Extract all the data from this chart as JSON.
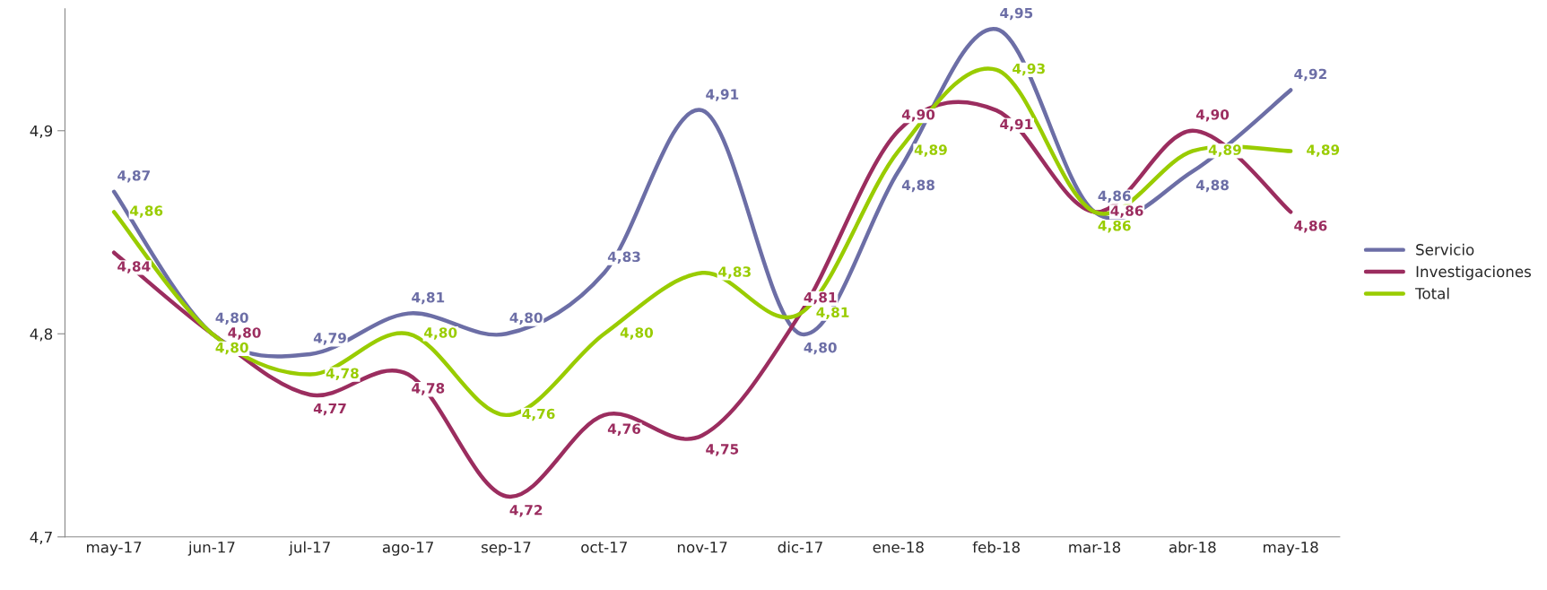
{
  "chart_data": {
    "type": "line",
    "categories": [
      "may-17",
      "jun-17",
      "jul-17",
      "ago-17",
      "sep-17",
      "oct-17",
      "nov-17",
      "dic-17",
      "ene-18",
      "feb-18",
      "mar-18",
      "abr-18",
      "may-18"
    ],
    "series": [
      {
        "name": "Servicio",
        "color": "#6c6ea6",
        "values": [
          4.87,
          4.8,
          4.79,
          4.81,
          4.8,
          4.83,
          4.91,
          4.8,
          4.88,
          4.95,
          4.86,
          4.88,
          4.92
        ],
        "value_labels": [
          "4,87",
          "4,80",
          "4,79",
          "4,81",
          "4,80",
          "4,83",
          "4,91",
          "4,80",
          "4,88",
          "4,95",
          "4,86",
          "4,88",
          "4,92"
        ]
      },
      {
        "name": "Investigaciones",
        "color": "#9b2d5f",
        "values": [
          4.84,
          4.8,
          4.77,
          4.78,
          4.72,
          4.76,
          4.75,
          4.81,
          4.9,
          4.91,
          4.86,
          4.9,
          4.86
        ],
        "value_labels": [
          "4,84",
          "4,80",
          "4,77",
          "4,78",
          "4,72",
          "4,76",
          "4,75",
          "4,81",
          "4,90",
          "4,91",
          "4,86",
          "4,90",
          "4,86"
        ]
      },
      {
        "name": "Total",
        "color": "#99cc00",
        "values": [
          4.86,
          4.8,
          4.78,
          4.8,
          4.76,
          4.8,
          4.83,
          4.81,
          4.89,
          4.93,
          4.86,
          4.89,
          4.89
        ],
        "value_labels": [
          "4,86",
          "4,80",
          "4,78",
          "4,80",
          "4,76",
          "4,80",
          "4,83",
          "4,81",
          "4,89",
          "4,93",
          "4,86",
          "4,89",
          "4,89"
        ]
      }
    ],
    "ylim": [
      4.7,
      4.96
    ],
    "yticks": [
      {
        "value": 4.7,
        "label": "4,7"
      },
      {
        "value": 4.8,
        "label": "4,8"
      },
      {
        "value": 4.9,
        "label": "4,9"
      }
    ],
    "grid": false,
    "legend": "right",
    "marker": "none",
    "line_style": "solid"
  }
}
